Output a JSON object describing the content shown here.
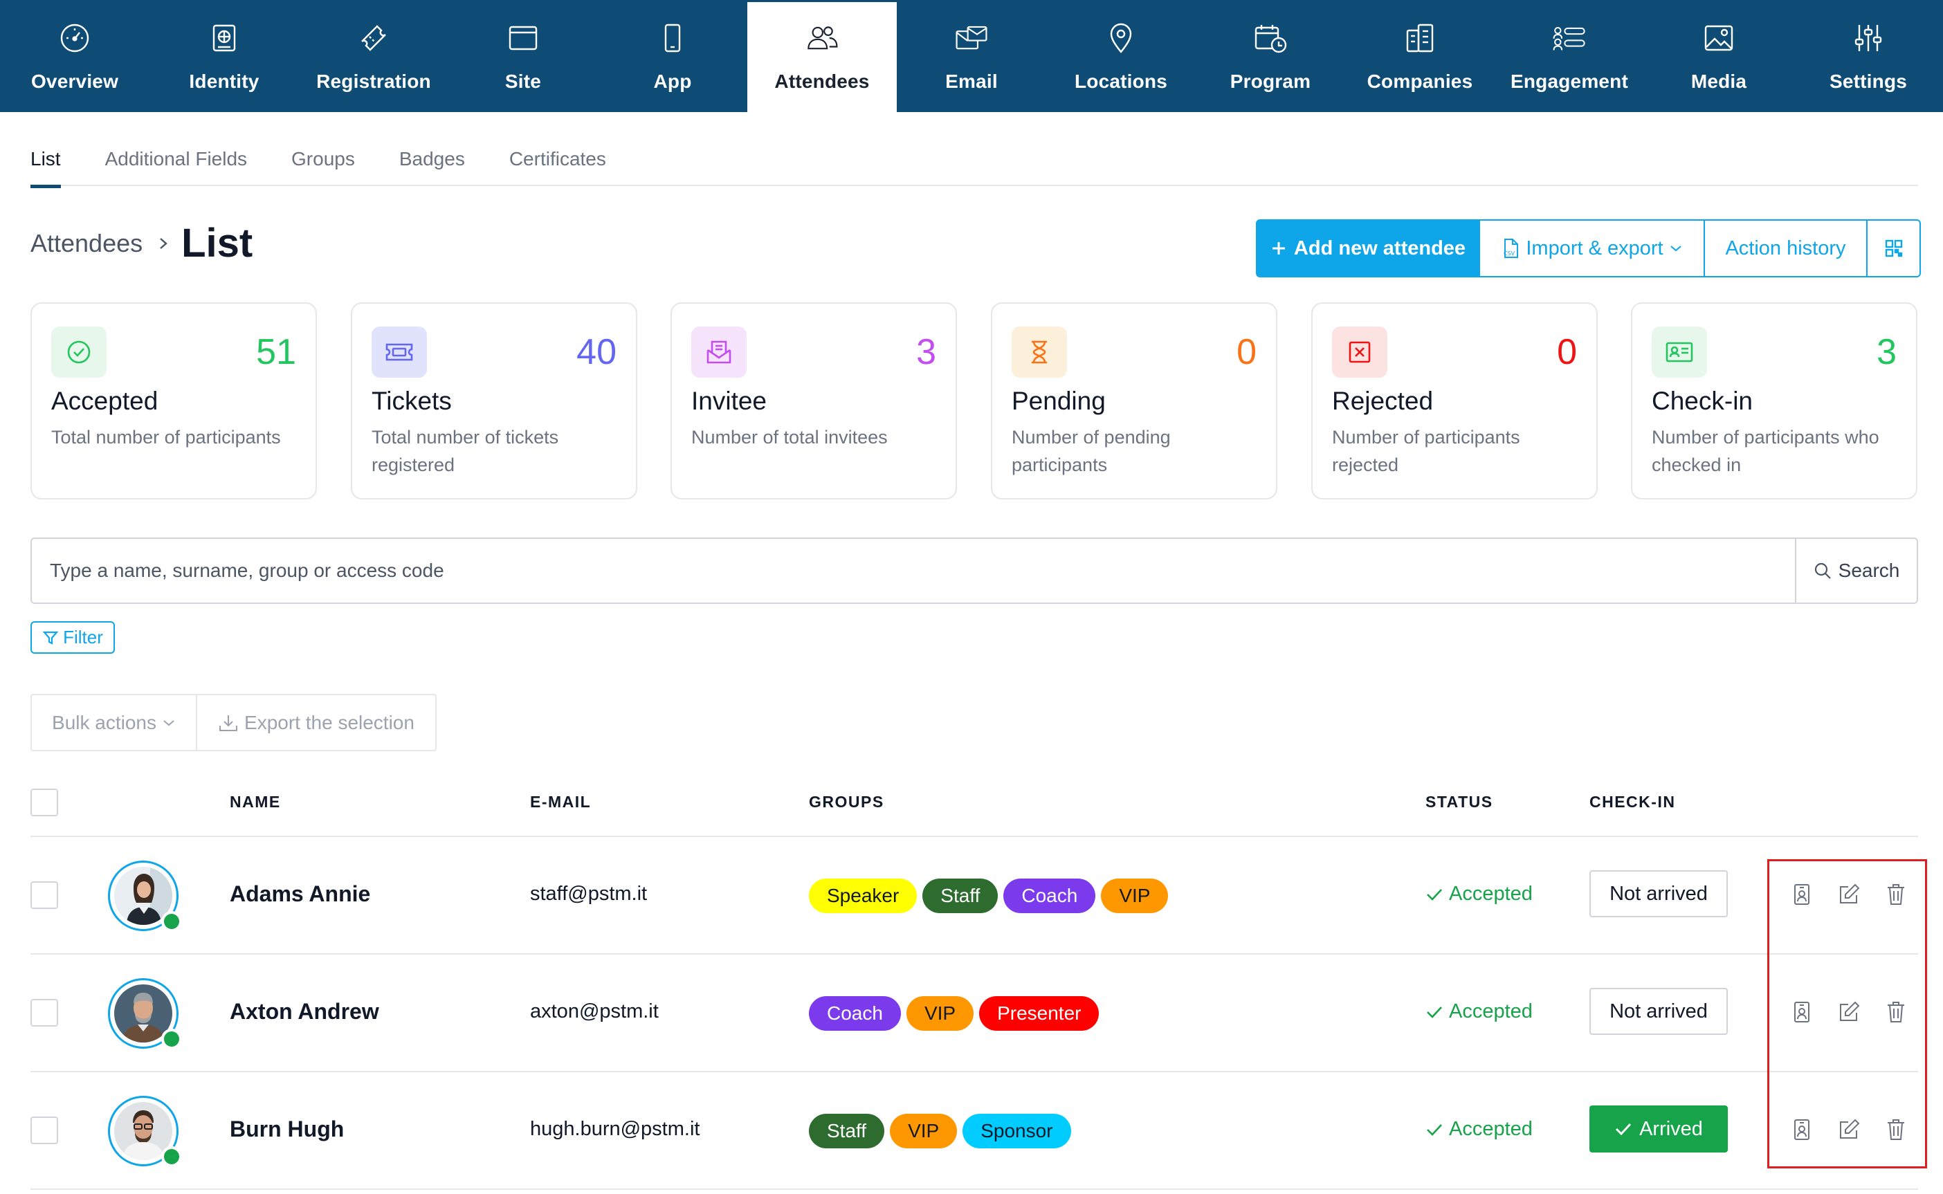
{
  "topnav": {
    "items": [
      {
        "label": "Overview",
        "icon": "gauge-icon"
      },
      {
        "label": "Identity",
        "icon": "id-card-icon"
      },
      {
        "label": "Registration",
        "icon": "ticket-icon"
      },
      {
        "label": "Site",
        "icon": "browser-icon"
      },
      {
        "label": "App",
        "icon": "mobile-icon"
      },
      {
        "label": "Attendees",
        "icon": "users-icon",
        "active": true
      },
      {
        "label": "Email",
        "icon": "mail-icon"
      },
      {
        "label": "Locations",
        "icon": "map-pin-icon"
      },
      {
        "label": "Program",
        "icon": "calendar-clock-icon"
      },
      {
        "label": "Companies",
        "icon": "buildings-icon"
      },
      {
        "label": "Engagement",
        "icon": "engagement-icon"
      },
      {
        "label": "Media",
        "icon": "image-icon"
      },
      {
        "label": "Settings",
        "icon": "sliders-icon"
      }
    ]
  },
  "subtabs": [
    "List",
    "Additional Fields",
    "Groups",
    "Badges",
    "Certificates"
  ],
  "heading": {
    "parent": "Attendees",
    "current": "List"
  },
  "actions": {
    "add": "Add new attendee",
    "import": "Import & export",
    "history": "Action history"
  },
  "stats": [
    {
      "title": "Accepted",
      "value": "51",
      "desc": "Total number of participants",
      "color": "#22c55e",
      "bg": "#e7f7ec",
      "icon": "check-circle-icon"
    },
    {
      "title": "Tickets",
      "value": "40",
      "desc": "Total number of tickets registered",
      "color": "#6366f1",
      "bg": "#e0e3fb",
      "icon": "ticket-icon"
    },
    {
      "title": "Invitee",
      "value": "3",
      "desc": "Number of total invitees",
      "color": "#c44df0",
      "bg": "#f6e3fc",
      "icon": "mail-open-icon"
    },
    {
      "title": "Pending",
      "value": "0",
      "desc": "Number of pending participants",
      "color": "#f97316",
      "bg": "#fdf0da",
      "icon": "hourglass-icon"
    },
    {
      "title": "Rejected",
      "value": "0",
      "desc": "Number of participants rejected",
      "color": "#ef1414",
      "bg": "#fde2e2",
      "icon": "x-square-icon"
    },
    {
      "title": "Check-in",
      "value": "3",
      "desc": "Number of participants who checked in",
      "color": "#22c55e",
      "bg": "#e7f7ec",
      "icon": "id-badge-icon"
    }
  ],
  "search": {
    "placeholder": "Type a name, surname, group or access code",
    "button": "Search"
  },
  "filter": "Filter",
  "bulk": {
    "actions": "Bulk actions",
    "export": "Export the selection"
  },
  "table": {
    "columns": {
      "name": "NAME",
      "email": "E-MAIL",
      "groups": "GROUPS",
      "status": "STATUS",
      "checkin": "CHECK-IN"
    },
    "rows": [
      {
        "name": "Adams Annie",
        "email": "staff@pstm.it",
        "groups": [
          {
            "label": "Speaker",
            "bg": "#ffff00",
            "fg": "#111827"
          },
          {
            "label": "Staff",
            "bg": "#2e6b2e",
            "fg": "#ffffff"
          },
          {
            "label": "Coach",
            "bg": "#7c3aed",
            "fg": "#ffffff"
          },
          {
            "label": "VIP",
            "bg": "#ff9800",
            "fg": "#111827"
          }
        ],
        "status": "Accepted",
        "checkin": "Not arrived",
        "arrived": false
      },
      {
        "name": "Axton Andrew",
        "email": "axton@pstm.it",
        "groups": [
          {
            "label": "Coach",
            "bg": "#7c3aed",
            "fg": "#ffffff"
          },
          {
            "label": "VIP",
            "bg": "#ff9800",
            "fg": "#111827"
          },
          {
            "label": "Presenter",
            "bg": "#ff0000",
            "fg": "#ffffff"
          }
        ],
        "status": "Accepted",
        "checkin": "Not arrived",
        "arrived": false
      },
      {
        "name": "Burn Hugh",
        "email": "hugh.burn@pstm.it",
        "groups": [
          {
            "label": "Staff",
            "bg": "#2e6b2e",
            "fg": "#ffffff"
          },
          {
            "label": "VIP",
            "bg": "#ff9800",
            "fg": "#111827"
          },
          {
            "label": "Sponsor",
            "bg": "#00ccff",
            "fg": "#111827"
          }
        ],
        "status": "Accepted",
        "checkin": "Arrived",
        "arrived": true
      }
    ]
  },
  "colors": {
    "nav": "#0f4c75",
    "accent": "#0ea5e9",
    "success": "#16a34a",
    "highlight": "#e11d1d"
  }
}
